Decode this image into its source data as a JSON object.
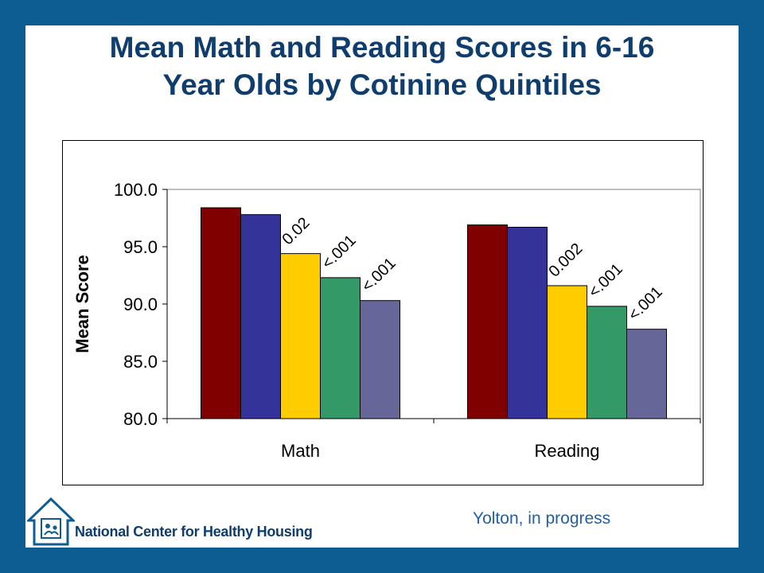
{
  "slide": {
    "title_line1": "Mean Math and Reading Scores in 6-16",
    "title_line2": "Year Olds by Cotinine Quintiles",
    "credit": "Yolton, in progress",
    "logo_text": "National Center for Healthy Housing"
  },
  "chart_data": {
    "type": "bar",
    "title": "",
    "xlabel": "",
    "ylabel": "Mean Score",
    "ylim": [
      80,
      100
    ],
    "yticks": [
      "80.0",
      "85.0",
      "90.0",
      "95.0",
      "100.0"
    ],
    "ytick_values": [
      80,
      85,
      90,
      95,
      100
    ],
    "categories": [
      "Math",
      "Reading"
    ],
    "grid": false,
    "legend": "none",
    "colors": [
      "#800000",
      "#333399",
      "#ffcc00",
      "#339966",
      "#666699"
    ],
    "series": [
      {
        "values": [
          98.4,
          96.9
        ]
      },
      {
        "values": [
          97.8,
          96.7
        ]
      },
      {
        "values": [
          94.4,
          91.6
        ]
      },
      {
        "values": [
          92.3,
          89.8
        ]
      },
      {
        "values": [
          90.3,
          87.8
        ]
      }
    ],
    "annotations": [
      [
        null,
        null,
        "0.02",
        "<.001",
        "<.001"
      ],
      [
        null,
        null,
        "0.002",
        "<.001",
        "<.001"
      ]
    ]
  }
}
